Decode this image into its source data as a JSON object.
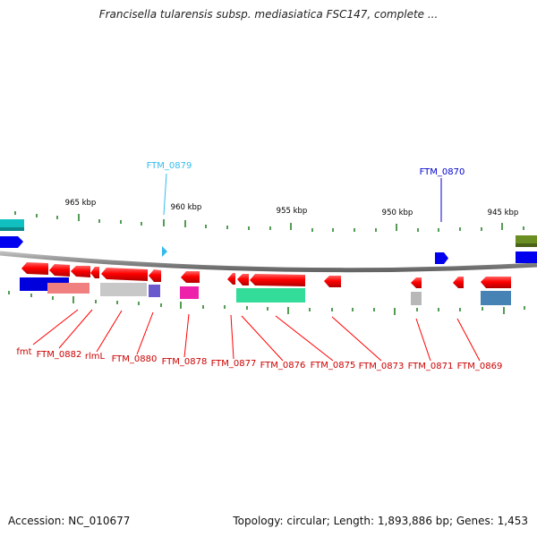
{
  "title": "Francisella tularensis subsp. mediasiatica FSC147, complete ...",
  "footer": {
    "accession": "Accession: NC_010677",
    "summary": "Topology: circular; Length: 1,893,886 bp; Genes: 1,453"
  },
  "ruler_labels": [
    "965 kbp",
    "960 kbp",
    "955 kbp",
    "950 kbp",
    "945 kbp"
  ],
  "top_callouts": [
    "FTM_0879",
    "FTM_0870"
  ],
  "gene_labels": [
    "fmt",
    "FTM_0882",
    "rlmL",
    "FTM_0880",
    "FTM_0878",
    "FTM_0877",
    "FTM_0876",
    "FTM_0875",
    "FTM_0873",
    "FTM_0871",
    "FTM_0869"
  ],
  "colors": {
    "gene_red": "#ff0000",
    "label_red": "#cc0000",
    "callout_cyan": "#33bbee",
    "callout_blue": "#0000cc",
    "tick_green": "#1a7a1a",
    "backbone_gray": "#888888"
  }
}
